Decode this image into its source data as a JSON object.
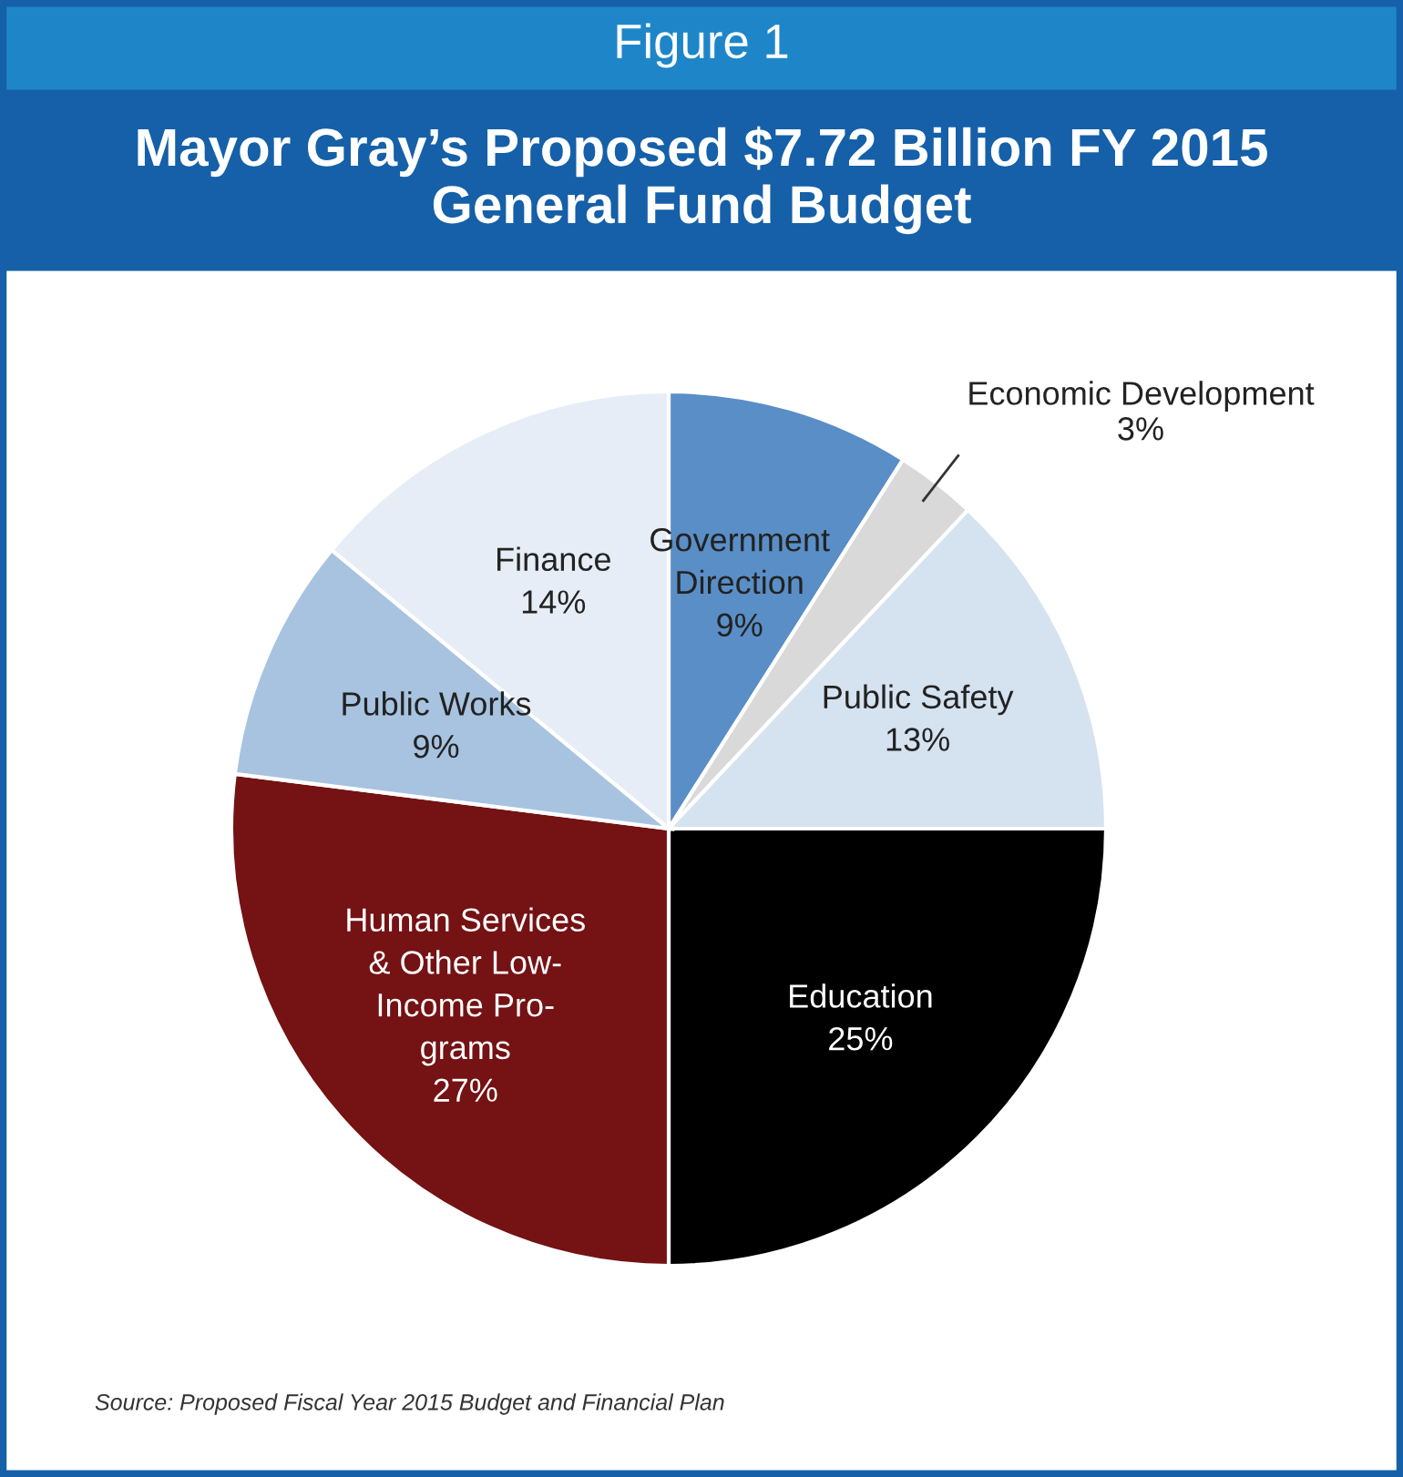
{
  "chart_data": {
    "type": "pie",
    "subtitle": "Figure 1",
    "title": "Mayor Gray’s Proposed $7.72 Billion FY 2015\nGeneral Fund Budget",
    "categories": [
      "Government\nDirection",
      "Economic Development",
      "Public Safety",
      "Education",
      "Human Services\n& Other Low-\nIncome Pro-\ngrams",
      "Public Works",
      "Finance"
    ],
    "values": [
      9,
      3,
      13,
      25,
      27,
      9,
      14
    ],
    "value_labels": [
      "9%",
      "3%",
      "13%",
      "25%",
      "27%",
      "9%",
      "14%"
    ],
    "colors": [
      "#5a8ec6",
      "#d9d9d9",
      "#d5e2f0",
      "#000000",
      "#741214",
      "#a8c3e0",
      "#e6edf6"
    ],
    "annotations": [
      "Source: Proposed Fiscal Year 2015 Budget and Financial Plan"
    ]
  }
}
